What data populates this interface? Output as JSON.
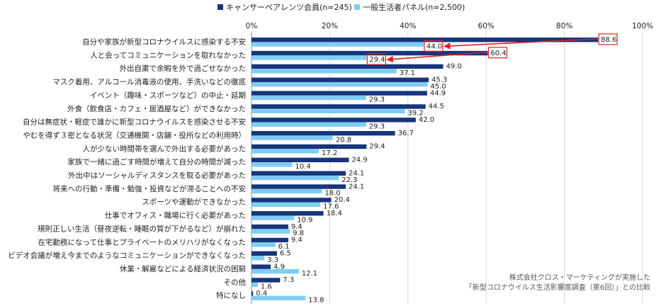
{
  "chart_data": {
    "type": "bar",
    "orientation": "horizontal",
    "title": "",
    "xlim": [
      0,
      100
    ],
    "x_ticks": [
      "0%",
      "20%",
      "40%",
      "60%",
      "80%",
      "100%"
    ],
    "tick_position": "top",
    "grid": true,
    "legend_position": "top",
    "categories": [
      "自分や家族が新型コロナウイルスに感染する不安",
      "人と会ってコミュニケーションを取れなかった",
      "外出自粛で余暇を外で過ごせなかった",
      "マスク着用、アルコール消毒液の使用、手洗いなどの徹底",
      "イベント（趣味・スポーツなど）の中止・延期",
      "外食（飲食店・カフェ・居酒屋など）ができなかった",
      "自分は無症状・軽症で誰かに新型コロナウイルスを感染させる不安",
      "やむを得ず３密となる状況（交通機関・店舗・役所などの利用時）",
      "人が少ない時間帯を選んで外出する必要があった",
      "家族で一緒に過ごす時間が増えて自分の時間が減った",
      "外出中はソーシャルディスタンスを取る必要があった",
      "将来への行動・準備・勉強・投資などが滞ることへの不安",
      "スポーツや運動ができなかった",
      "仕事でオフィス・職場に行く必要があった",
      "規則正しい生活（昼夜逆転・睡眠の質が下がるなど）が崩れた",
      "在宅勤務になって仕事とプライベートのメリハリがなくなった",
      "ビデオ会議が増え今までのようなコミュニケーションができなくなった",
      "休業・解雇などによる経済状況の困窮",
      "その他",
      "特になし"
    ],
    "series": [
      {
        "name": "キャンサーペアレンツ会員(n=245)",
        "color": "#17357a",
        "values": [
          88.6,
          60.4,
          49.0,
          45.3,
          44.9,
          44.5,
          42.0,
          36.7,
          29.4,
          24.9,
          24.1,
          24.1,
          20.4,
          18.4,
          9.4,
          9.4,
          6.5,
          4.9,
          7.3,
          0.4
        ],
        "labels": [
          "88.6",
          "60.4",
          "49.0",
          "45.3",
          "44.9",
          "44.5",
          "42.0",
          "36.7",
          "29.4",
          "24.9",
          "24.1",
          "24.1",
          "20.4",
          "18.4",
          "9.4",
          "9.4",
          "6.5",
          "4.9",
          "7.3",
          "0.4"
        ]
      },
      {
        "name": "一般生活者パネル(n=2,500)",
        "color": "#7fcdf2",
        "values": [
          44.0,
          29.4,
          37.1,
          45.0,
          29.3,
          39.2,
          29.3,
          20.8,
          17.2,
          10.4,
          22.3,
          18.0,
          17.6,
          10.9,
          9.8,
          6.1,
          3.3,
          12.1,
          1.6,
          13.8
        ],
        "labels": [
          "44.0",
          "29.4",
          "37.1",
          "45.0",
          "29.3",
          "39.2",
          "29.3",
          "20.8",
          "17.2",
          "10.4",
          "22.3",
          "18.0",
          "17.6",
          "10.9",
          "9.8",
          "6.1",
          "3.3",
          "12.1",
          "1.6",
          "13.8"
        ]
      }
    ],
    "highlight_color": "#e02020",
    "highlights": [
      {
        "category_index": 0,
        "from_series": 0,
        "to_series": 1
      },
      {
        "category_index": 1,
        "from_series": 0,
        "to_series": 1
      }
    ],
    "source_note": [
      "株式会社クロス・マーケティングが実施した",
      "「新型コロナウイルス生活影響度調査（第6回）」との比較"
    ]
  }
}
